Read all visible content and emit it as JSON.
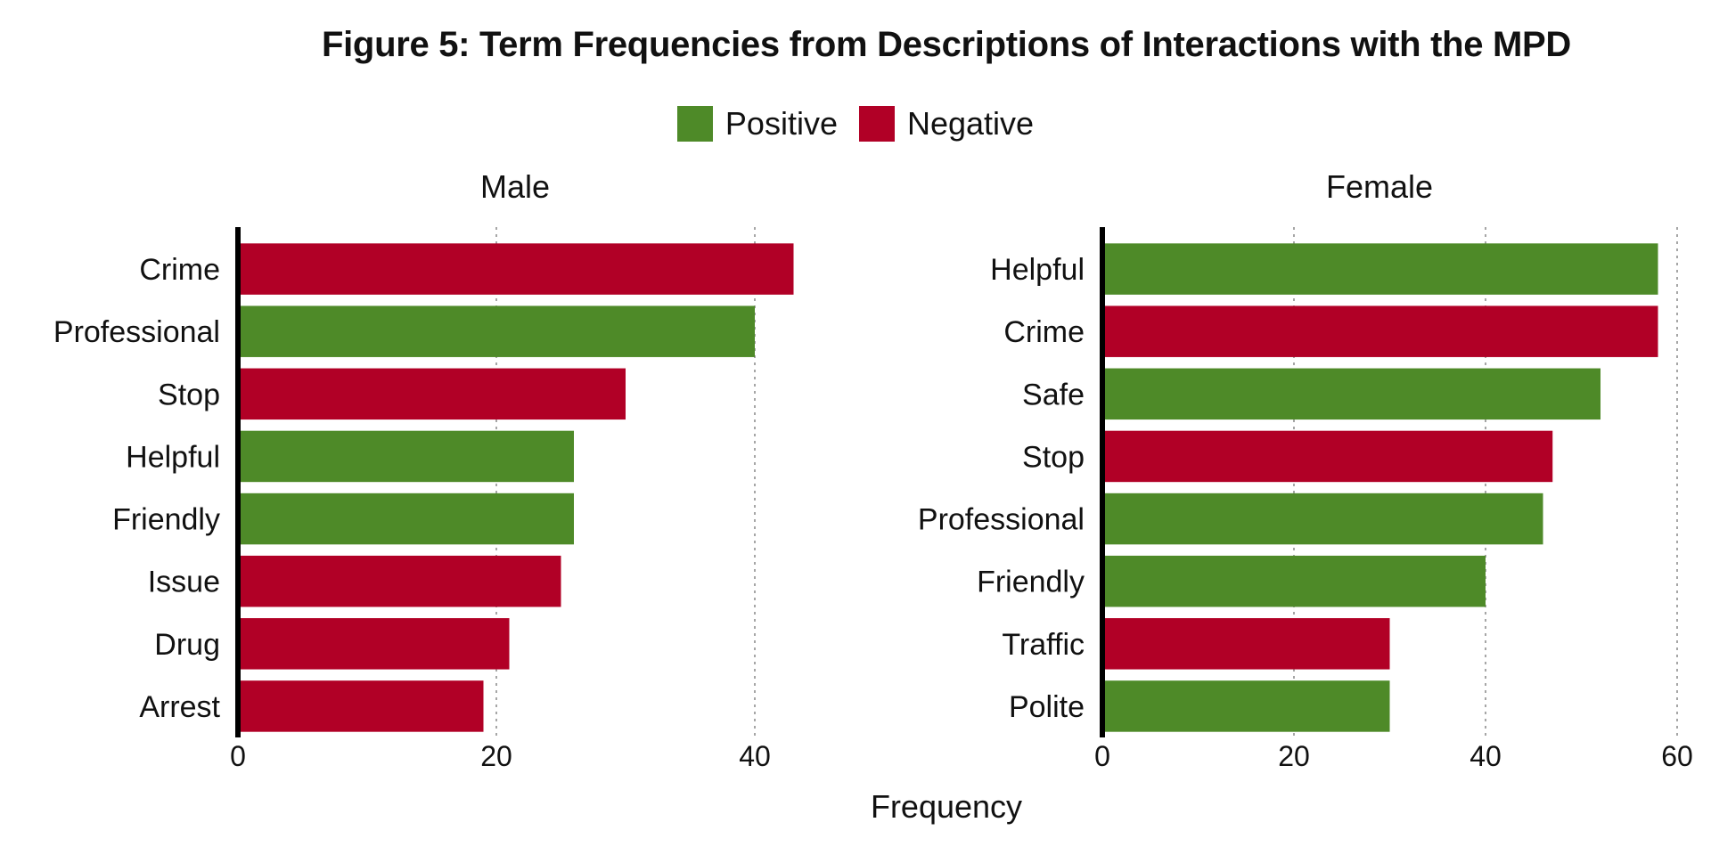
{
  "chart_data": {
    "type": "bar",
    "orientation": "horizontal",
    "title": "Figure 5: Term Frequencies from Descriptions of Interactions with the MPD",
    "xlabel": "Frequency",
    "legend": {
      "placement": "top",
      "items": [
        {
          "key": "positive",
          "label": "Positive",
          "color": "#4e8a28"
        },
        {
          "key": "negative",
          "label": "Negative",
          "color": "#b10026"
        }
      ]
    },
    "grid": "vertical-dotted",
    "panels": [
      {
        "title": "Male",
        "xlim": [
          0,
          48
        ],
        "xticks": [
          0,
          20,
          40
        ],
        "bars": [
          {
            "term": "Crime",
            "value": 43,
            "sentiment": "negative"
          },
          {
            "term": "Professional",
            "value": 40,
            "sentiment": "positive"
          },
          {
            "term": "Stop",
            "value": 30,
            "sentiment": "negative"
          },
          {
            "term": "Helpful",
            "value": 26,
            "sentiment": "positive"
          },
          {
            "term": "Friendly",
            "value": 26,
            "sentiment": "positive"
          },
          {
            "term": "Issue",
            "value": 25,
            "sentiment": "negative"
          },
          {
            "term": "Drug",
            "value": 21,
            "sentiment": "negative"
          },
          {
            "term": "Arrest",
            "value": 19,
            "sentiment": "negative"
          }
        ]
      },
      {
        "title": "Female",
        "xlim": [
          0,
          60
        ],
        "xticks": [
          0,
          20,
          40,
          60
        ],
        "bars": [
          {
            "term": "Helpful",
            "value": 58,
            "sentiment": "positive"
          },
          {
            "term": "Crime",
            "value": 58,
            "sentiment": "negative"
          },
          {
            "term": "Safe",
            "value": 52,
            "sentiment": "positive"
          },
          {
            "term": "Stop",
            "value": 47,
            "sentiment": "negative"
          },
          {
            "term": "Professional",
            "value": 46,
            "sentiment": "positive"
          },
          {
            "term": "Friendly",
            "value": 40,
            "sentiment": "positive"
          },
          {
            "term": "Traffic",
            "value": 30,
            "sentiment": "negative"
          },
          {
            "term": "Polite",
            "value": 30,
            "sentiment": "positive"
          }
        ]
      }
    ]
  }
}
